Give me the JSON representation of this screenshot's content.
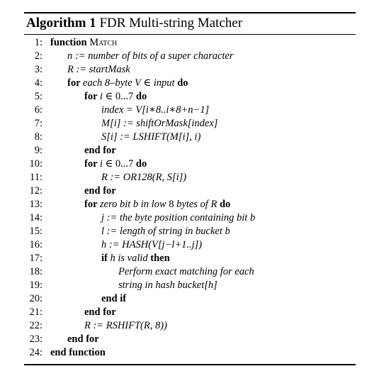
{
  "algorithm": {
    "caption_label": "Algorithm 1",
    "caption_title": "FDR Multi-string Matcher",
    "lines": [
      {
        "num": "1:",
        "indent": 0,
        "parts": [
          {
            "t": "function ",
            "s": "kw"
          },
          {
            "t": "Match",
            "s": "sc"
          }
        ]
      },
      {
        "num": "2:",
        "indent": 1,
        "parts": [
          {
            "t": "n := number of bits of a super character",
            "s": "math"
          }
        ]
      },
      {
        "num": "3:",
        "indent": 1,
        "parts": [
          {
            "t": "R := startMask",
            "s": "math"
          }
        ]
      },
      {
        "num": "4:",
        "indent": 1,
        "parts": [
          {
            "t": "for ",
            "s": "kw"
          },
          {
            "t": "each 8–byte V ∈ input ",
            "s": "math"
          },
          {
            "t": "do",
            "s": "kw"
          }
        ]
      },
      {
        "num": "5:",
        "indent": 2,
        "parts": [
          {
            "t": "for ",
            "s": "kw"
          },
          {
            "t": "i ",
            "s": "math"
          },
          {
            "t": "∈ 0...7 ",
            "s": ""
          },
          {
            "t": "do",
            "s": "kw"
          }
        ]
      },
      {
        "num": "6:",
        "indent": 3,
        "parts": [
          {
            "t": "index = V[i∗8..i∗8+n−1]",
            "s": "math"
          }
        ]
      },
      {
        "num": "7:",
        "indent": 3,
        "parts": [
          {
            "t": "M[i] := shiftOrMask[index]",
            "s": "math"
          }
        ]
      },
      {
        "num": "8:",
        "indent": 3,
        "parts": [
          {
            "t": "S[i] := LSHIFT(M[i], i)",
            "s": "math"
          }
        ]
      },
      {
        "num": "9:",
        "indent": 2,
        "parts": [
          {
            "t": "end for",
            "s": "kw"
          }
        ]
      },
      {
        "num": "10:",
        "indent": 2,
        "parts": [
          {
            "t": "for ",
            "s": "kw"
          },
          {
            "t": "i ",
            "s": "math"
          },
          {
            "t": "∈ 0...7 ",
            "s": ""
          },
          {
            "t": "do",
            "s": "kw"
          }
        ]
      },
      {
        "num": "11:",
        "indent": 3,
        "parts": [
          {
            "t": "R := OR128(R, S[i])",
            "s": "math"
          }
        ]
      },
      {
        "num": "12:",
        "indent": 2,
        "parts": [
          {
            "t": "end for",
            "s": "kw"
          }
        ]
      },
      {
        "num": "13:",
        "indent": 2,
        "parts": [
          {
            "t": "for ",
            "s": "kw"
          },
          {
            "t": "zero bit b in low ",
            "s": "math"
          },
          {
            "t": "8 ",
            "s": ""
          },
          {
            "t": "bytes of R ",
            "s": "math"
          },
          {
            "t": "do",
            "s": "kw"
          }
        ]
      },
      {
        "num": "14:",
        "indent": 3,
        "parts": [
          {
            "t": "j := the byte position containing bit b",
            "s": "math"
          }
        ]
      },
      {
        "num": "15:",
        "indent": 3,
        "parts": [
          {
            "t": "l := length of string in bucket b",
            "s": "math"
          }
        ]
      },
      {
        "num": "16:",
        "indent": 3,
        "parts": [
          {
            "t": "h := HASH(V[j−l+1..j])",
            "s": "math"
          }
        ]
      },
      {
        "num": "17:",
        "indent": 3,
        "parts": [
          {
            "t": "if ",
            "s": "kw"
          },
          {
            "t": "h is valid ",
            "s": "math"
          },
          {
            "t": "then",
            "s": "kw"
          }
        ]
      },
      {
        "num": "18:",
        "indent": 4,
        "parts": [
          {
            "t": "Perform exact matching for each",
            "s": "math"
          }
        ]
      },
      {
        "num": "19:",
        "indent": 4,
        "parts": [
          {
            "t": "string in hash bucket[h]",
            "s": "math"
          }
        ]
      },
      {
        "num": "20:",
        "indent": 3,
        "parts": [
          {
            "t": "end if",
            "s": "kw"
          }
        ]
      },
      {
        "num": "21:",
        "indent": 2,
        "parts": [
          {
            "t": "end for",
            "s": "kw"
          }
        ]
      },
      {
        "num": "22:",
        "indent": 2,
        "parts": [
          {
            "t": "R := RSHIFT(R, 8))",
            "s": "math"
          }
        ]
      },
      {
        "num": "23:",
        "indent": 1,
        "parts": [
          {
            "t": "end for",
            "s": "kw"
          }
        ]
      },
      {
        "num": "24:",
        "indent": 0,
        "parts": [
          {
            "t": "end function",
            "s": "kw"
          }
        ]
      }
    ]
  }
}
